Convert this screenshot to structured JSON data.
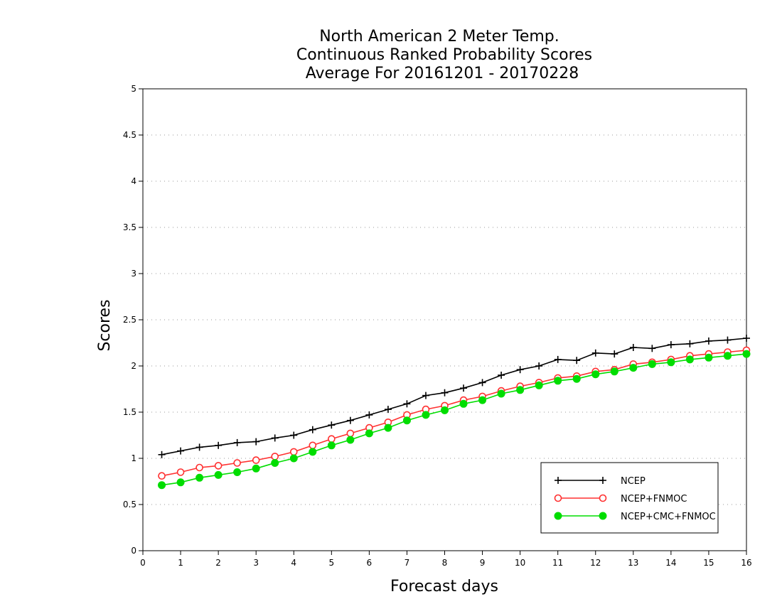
{
  "chart_data": {
    "type": "line",
    "title_lines": [
      "North American 2 Meter Temp.",
      "Continuous Ranked Probability Scores",
      "Average For 20161201 - 20170228"
    ],
    "xlabel": "Forecast days",
    "ylabel": "Scores",
    "xlim": [
      0,
      16
    ],
    "ylim": [
      0,
      5
    ],
    "xticks": [
      "0",
      "1",
      "2",
      "3",
      "4",
      "5",
      "6",
      "7",
      "8",
      "9",
      "10",
      "11",
      "12",
      "13",
      "14",
      "15",
      "16"
    ],
    "yticks": [
      "0",
      "0.5",
      "1",
      "1.5",
      "2",
      "2.5",
      "3",
      "3.5",
      "4",
      "4.5",
      "5"
    ],
    "grid": true,
    "legend_position": "bottom-right",
    "x": [
      0.5,
      1,
      1.5,
      2,
      2.5,
      3,
      3.5,
      4,
      4.5,
      5,
      5.5,
      6,
      6.5,
      7,
      7.5,
      8,
      8.5,
      9,
      9.5,
      10,
      10.5,
      11,
      11.5,
      12,
      12.5,
      13,
      13.5,
      14,
      14.5,
      15,
      15.5,
      16
    ],
    "series": [
      {
        "name": "NCEP",
        "color": "#000000",
        "marker": "plus",
        "values": [
          1.04,
          1.08,
          1.12,
          1.14,
          1.17,
          1.18,
          1.22,
          1.25,
          1.31,
          1.36,
          1.41,
          1.47,
          1.53,
          1.59,
          1.68,
          1.71,
          1.76,
          1.82,
          1.9,
          1.96,
          2.0,
          2.07,
          2.06,
          2.14,
          2.13,
          2.2,
          2.19,
          2.23,
          2.24,
          2.27,
          2.28,
          2.3
        ]
      },
      {
        "name": "NCEP+FNMOC",
        "color": "#ff3030",
        "marker": "open-circle",
        "values": [
          0.81,
          0.85,
          0.9,
          0.92,
          0.95,
          0.98,
          1.02,
          1.07,
          1.14,
          1.21,
          1.27,
          1.33,
          1.39,
          1.47,
          1.53,
          1.57,
          1.63,
          1.67,
          1.73,
          1.78,
          1.82,
          1.87,
          1.89,
          1.94,
          1.96,
          2.02,
          2.04,
          2.07,
          2.11,
          2.13,
          2.15,
          2.17
        ]
      },
      {
        "name": "NCEP+CMC+FNMOC",
        "color": "#00dd00",
        "marker": "filled-circle",
        "values": [
          0.71,
          0.74,
          0.79,
          0.82,
          0.85,
          0.89,
          0.95,
          1.0,
          1.07,
          1.14,
          1.2,
          1.27,
          1.33,
          1.41,
          1.47,
          1.52,
          1.59,
          1.63,
          1.7,
          1.74,
          1.79,
          1.84,
          1.86,
          1.91,
          1.94,
          1.98,
          2.02,
          2.04,
          2.07,
          2.09,
          2.11,
          2.13
        ]
      }
    ]
  }
}
